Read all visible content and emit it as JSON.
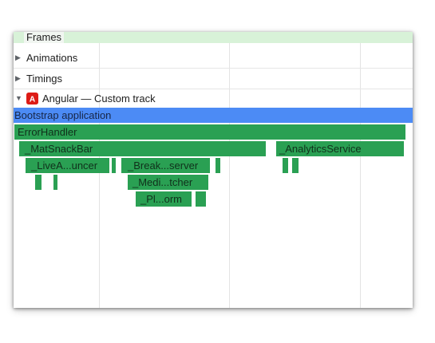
{
  "frames": {
    "label": "Frames"
  },
  "tracks": [
    {
      "label": "Animations"
    },
    {
      "label": "Timings"
    },
    {
      "label": "Angular — Custom track",
      "logo_letter": "A"
    }
  ],
  "flame": {
    "bootstrap_label": "Bootstrap application",
    "error_handler_label": "ErrorHandler",
    "mat_snack_bar_label": "_MatSnackBar",
    "analytics_service_label": "_AnalyticsService",
    "live_announcer_label": "_LiveA...uncer",
    "breakpoint_observer_label": "_Break...server",
    "media_matcher_label": "_Medi...tcher",
    "platform_label": "_Pl...orm"
  },
  "colors": {
    "frames_bg": "#d8f2d8",
    "bootstrap_bar": "#4c8bf5",
    "flame_bar": "#2aa053",
    "angular_red": "#dd1b16"
  }
}
